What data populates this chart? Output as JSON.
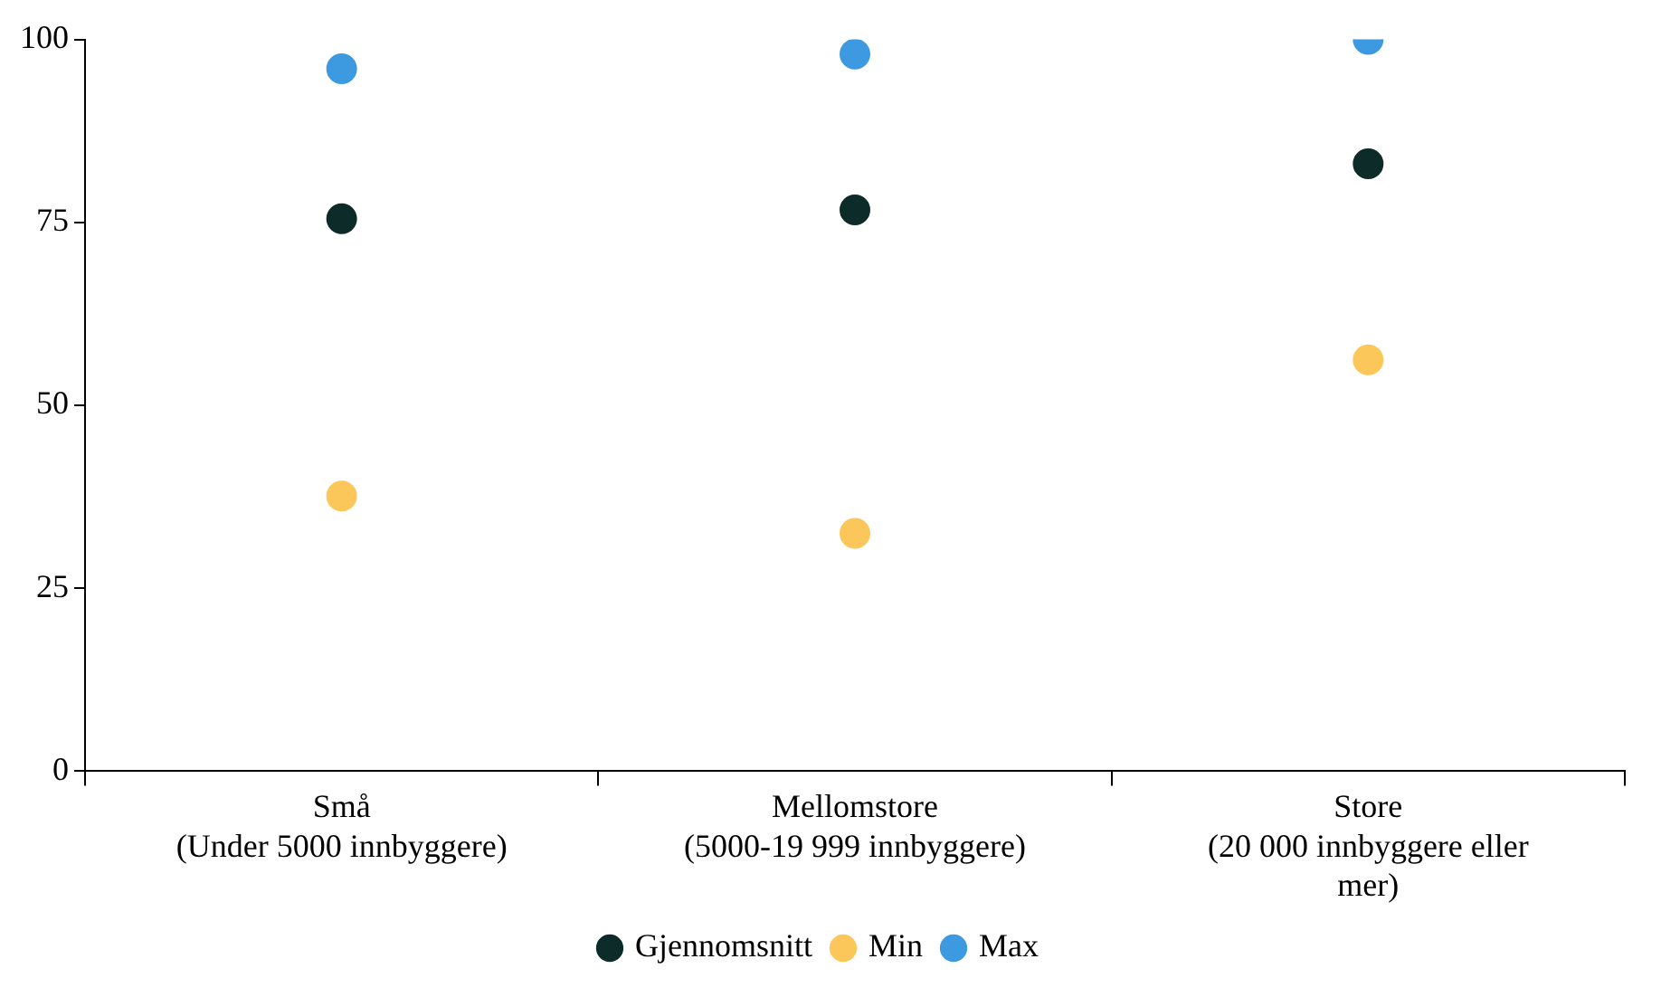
{
  "chart_data": {
    "type": "scatter",
    "categories": [
      "Små\n(Under 5000 innbyggere)",
      "Mellomstore\n(5000-19 999 innbyggere)",
      "Store\n(20 000 innbyggere eller\nmer)"
    ],
    "series": [
      {
        "name": "Gjennomsnitt",
        "color": "#0d2b28",
        "values": [
          75.5,
          76.7,
          83
        ]
      },
      {
        "name": "Min",
        "color": "#fcc75a",
        "values": [
          37.6,
          32.5,
          56.2
        ]
      },
      {
        "name": "Max",
        "color": "#3d9ae0",
        "values": [
          96,
          98,
          100
        ]
      }
    ],
    "ylim": [
      0,
      100
    ],
    "yticks": [
      0,
      25,
      50,
      75,
      100
    ],
    "grid": false,
    "legend": "bottom",
    "marker": "circle"
  }
}
